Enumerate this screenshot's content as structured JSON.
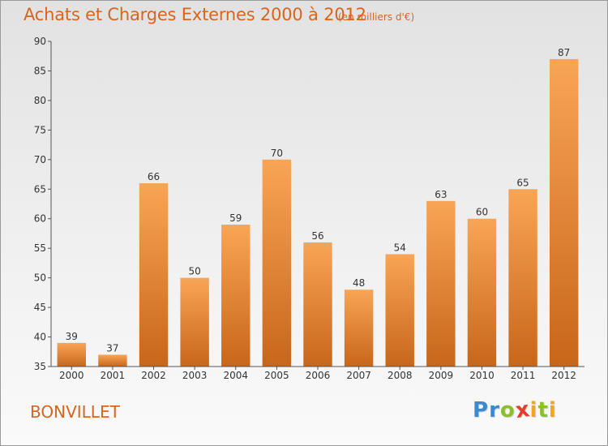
{
  "chart_data": {
    "type": "bar",
    "title": "Achats et Charges Externes 2000 à 2012",
    "subtitle": "(en milliers d'€)",
    "categories": [
      "2000",
      "2001",
      "2002",
      "2003",
      "2004",
      "2005",
      "2006",
      "2007",
      "2008",
      "2009",
      "2010",
      "2011",
      "2012"
    ],
    "values": [
      39,
      37,
      66,
      50,
      59,
      70,
      56,
      48,
      54,
      63,
      60,
      65,
      87
    ],
    "ylim": [
      35,
      90
    ],
    "yticks": [
      35,
      40,
      45,
      50,
      55,
      60,
      65,
      70,
      75,
      80,
      85,
      90
    ],
    "grid": false,
    "bar_color_top": "#f9a556",
    "bar_color_bottom": "#c8661a"
  },
  "footer": {
    "place_name": "BONVILLET",
    "logo_letters": [
      {
        "ch": "P",
        "color": "#3a8ad0"
      },
      {
        "ch": "r",
        "color": "#3a8ad0"
      },
      {
        "ch": "o",
        "color": "#8cbf2e"
      },
      {
        "ch": "x",
        "color": "#e23d2d"
      },
      {
        "ch": "i",
        "color": "#f2a71b"
      },
      {
        "ch": "t",
        "color": "#8cbf2e"
      },
      {
        "ch": "i",
        "color": "#f2a71b"
      }
    ]
  }
}
